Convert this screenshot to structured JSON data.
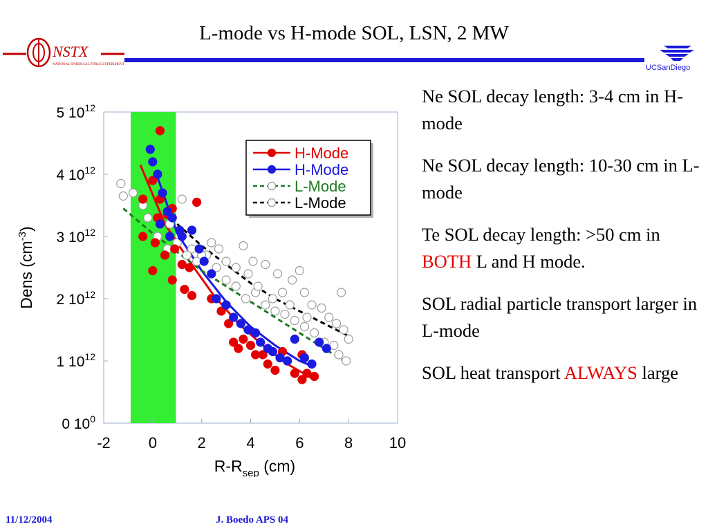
{
  "slide": {
    "title": "L-mode vs H-mode SOL, LSN, 2 MW",
    "logo_left_text": "NSTX",
    "logo_left_subtext": "NATIONAL SPHERICAL TORUS EXPERIMENT",
    "logo_right_text": "UCSanDiego",
    "footer_date": "11/12/2004",
    "footer_author": "J. Boedo APS 04"
  },
  "notes": [
    {
      "text": "Ne SOL decay length: 3-4 cm in H-mode"
    },
    {
      "text": "Ne SOL decay length: 10-30 cm in L-mode"
    },
    {
      "before": "Te SOL decay length: >50 cm in ",
      "highlight": "BOTH",
      "after": " L and H mode."
    },
    {
      "text": "SOL radial particle transport larger in L-mode"
    },
    {
      "before": "SOL heat transport ",
      "highlight": "ALWAYS",
      "after": " large"
    }
  ],
  "colors": {
    "title_rule": "#1a1ad8",
    "footer": "#1a1ad8",
    "highlight": "#e50000",
    "h_mode_red": "#e50000",
    "h_mode_blue": "#1a1ae0",
    "l_mode_green": "#1f7a1f",
    "l_mode_black": "#000000",
    "band": "#33ee33"
  },
  "chart_data": {
    "type": "scatter",
    "xlabel_main": "R-R",
    "xlabel_sub": "sep",
    "xlabel_unit": "(cm)",
    "ylabel_main": "Dens (cm",
    "ylabel_sup": "-3",
    "ylabel_end": ")",
    "xlim": [
      -2,
      10
    ],
    "ylim": [
      0,
      5
    ],
    "x_ticks": [
      -2,
      0,
      2,
      4,
      6,
      8,
      10
    ],
    "y_ticks": [
      {
        "value": 0,
        "base": "0 10",
        "exp": "0"
      },
      {
        "value": 1,
        "base": "1 10",
        "exp": "12"
      },
      {
        "value": 2,
        "base": "2 10",
        "exp": "12"
      },
      {
        "value": 3,
        "base": "3 10",
        "exp": "12"
      },
      {
        "value": 4,
        "base": "4 10",
        "exp": "12"
      },
      {
        "value": 5,
        "base": "5 10",
        "exp": "12"
      }
    ],
    "band": {
      "x_from": -0.9,
      "x_to": 0.95,
      "color": "#33ee33"
    },
    "legend_position": "top-right",
    "series": [
      {
        "name": "H-Mode",
        "color": "#e50000",
        "marker": "filled",
        "line": "solid",
        "points": [
          [
            0.3,
            4.7
          ],
          [
            -0.4,
            3.6
          ],
          [
            0.0,
            3.9
          ],
          [
            0.3,
            3.6
          ],
          [
            0.8,
            3.45
          ],
          [
            0.6,
            3.35
          ],
          [
            0.2,
            3.3
          ],
          [
            -0.4,
            3.0
          ],
          [
            0.1,
            2.9
          ],
          [
            0.5,
            2.7
          ],
          [
            0.9,
            2.8
          ],
          [
            1.2,
            2.55
          ],
          [
            1.5,
            2.5
          ],
          [
            0.0,
            2.45
          ],
          [
            0.8,
            2.3
          ],
          [
            1.3,
            2.15
          ],
          [
            1.8,
            3.55
          ],
          [
            1.6,
            2.05
          ],
          [
            2.4,
            2.0
          ],
          [
            2.8,
            1.8
          ],
          [
            3.1,
            1.6
          ],
          [
            3.3,
            1.3
          ],
          [
            3.5,
            1.2
          ],
          [
            3.7,
            1.35
          ],
          [
            4.0,
            1.25
          ],
          [
            4.2,
            1.1
          ],
          [
            4.5,
            1.1
          ],
          [
            4.7,
            0.95
          ],
          [
            5.0,
            0.85
          ],
          [
            5.3,
            1.15
          ],
          [
            5.5,
            1.0
          ],
          [
            5.8,
            0.8
          ],
          [
            6.1,
            1.1
          ],
          [
            6.3,
            0.8
          ],
          [
            6.6,
            0.75
          ],
          [
            6.1,
            0.7
          ]
        ],
        "fit": [
          [
            -0.5,
            4.15
          ],
          [
            0.5,
            3.2
          ],
          [
            1.5,
            2.6
          ],
          [
            2.5,
            2.05
          ],
          [
            3.5,
            1.6
          ],
          [
            4.5,
            1.25
          ],
          [
            5.5,
            0.95
          ],
          [
            6.6,
            0.7
          ]
        ]
      },
      {
        "name": "H-Mode",
        "color": "#1a1ae0",
        "marker": "filled",
        "line": "solid",
        "points": [
          [
            -0.1,
            4.4
          ],
          [
            0.0,
            4.2
          ],
          [
            0.2,
            4.0
          ],
          [
            0.4,
            3.7
          ],
          [
            0.6,
            3.4
          ],
          [
            0.8,
            3.3
          ],
          [
            0.3,
            3.2
          ],
          [
            0.7,
            3.0
          ],
          [
            1.1,
            3.1
          ],
          [
            1.2,
            3.0
          ],
          [
            1.6,
            3.1
          ],
          [
            1.9,
            2.8
          ],
          [
            2.1,
            2.6
          ],
          [
            2.4,
            2.4
          ],
          [
            2.6,
            2.0
          ],
          [
            3.0,
            1.9
          ],
          [
            3.3,
            1.7
          ],
          [
            3.6,
            1.6
          ],
          [
            3.9,
            1.5
          ],
          [
            4.2,
            1.45
          ],
          [
            4.4,
            1.3
          ],
          [
            4.7,
            1.2
          ],
          [
            4.9,
            1.15
          ],
          [
            5.2,
            1.05
          ],
          [
            5.5,
            1.0
          ],
          [
            5.8,
            1.35
          ],
          [
            6.2,
            1.05
          ],
          [
            6.5,
            0.95
          ],
          [
            6.8,
            1.3
          ],
          [
            7.1,
            1.2
          ]
        ],
        "fit": [
          [
            0.2,
            3.95
          ],
          [
            1.0,
            3.05
          ],
          [
            2.0,
            2.45
          ],
          [
            3.0,
            1.95
          ],
          [
            4.0,
            1.55
          ],
          [
            5.0,
            1.25
          ],
          [
            6.0,
            1.0
          ],
          [
            6.5,
            0.92
          ]
        ]
      },
      {
        "name": "L-Mode",
        "color": "#1f7a1f",
        "marker": "open",
        "line": "dashed",
        "points": [
          [
            -1.2,
            3.65
          ],
          [
            -0.8,
            3.7
          ],
          [
            -0.4,
            3.5
          ],
          [
            -0.2,
            3.3
          ],
          [
            0.2,
            3.0
          ],
          [
            0.6,
            2.8
          ],
          [
            1.0,
            2.9
          ],
          [
            1.4,
            2.7
          ],
          [
            1.8,
            2.6
          ],
          [
            2.2,
            2.7
          ],
          [
            2.6,
            2.5
          ],
          [
            3.0,
            2.3
          ],
          [
            3.4,
            2.2
          ],
          [
            3.8,
            2.0
          ],
          [
            4.2,
            2.1
          ],
          [
            4.6,
            1.9
          ],
          [
            5.0,
            1.8
          ],
          [
            5.4,
            1.75
          ],
          [
            5.8,
            1.65
          ],
          [
            6.2,
            1.55
          ],
          [
            6.6,
            1.45
          ],
          [
            7.0,
            1.3
          ],
          [
            7.4,
            1.25
          ],
          [
            7.6,
            1.1
          ],
          [
            7.9,
            1.0
          ]
        ],
        "fit": [
          [
            -1.2,
            3.45
          ],
          [
            0.0,
            3.05
          ],
          [
            1.0,
            2.75
          ],
          [
            2.0,
            2.45
          ],
          [
            3.0,
            2.2
          ],
          [
            4.0,
            1.95
          ],
          [
            5.0,
            1.7
          ],
          [
            6.0,
            1.45
          ],
          [
            7.0,
            1.2
          ],
          [
            8.0,
            0.95
          ]
        ]
      },
      {
        "name": "L-Mode",
        "color": "#000000",
        "marker": "open",
        "line": "dashed",
        "points": [
          [
            -1.3,
            3.85
          ],
          [
            0.2,
            3.0
          ],
          [
            0.7,
            3.2
          ],
          [
            1.2,
            3.6
          ],
          [
            1.6,
            2.8
          ],
          [
            2.0,
            2.7
          ],
          [
            2.4,
            2.9
          ],
          [
            2.7,
            2.8
          ],
          [
            3.0,
            2.6
          ],
          [
            3.4,
            2.5
          ],
          [
            3.7,
            2.85
          ],
          [
            3.9,
            2.4
          ],
          [
            4.1,
            2.6
          ],
          [
            4.3,
            2.2
          ],
          [
            4.6,
            2.55
          ],
          [
            4.9,
            2.0
          ],
          [
            5.1,
            2.4
          ],
          [
            5.3,
            2.1
          ],
          [
            5.7,
            2.3
          ],
          [
            6.0,
            2.45
          ],
          [
            6.2,
            2.1
          ],
          [
            6.5,
            1.9
          ],
          [
            6.9,
            1.85
          ],
          [
            7.2,
            1.7
          ],
          [
            7.5,
            1.6
          ],
          [
            7.8,
            1.5
          ],
          [
            8.0,
            1.35
          ],
          [
            7.7,
            2.1
          ],
          [
            6.3,
            1.7
          ],
          [
            5.6,
            1.9
          ]
        ],
        "fit": [
          [
            1.0,
            3.2
          ],
          [
            2.0,
            2.85
          ],
          [
            3.0,
            2.55
          ],
          [
            4.0,
            2.25
          ],
          [
            5.0,
            2.0
          ],
          [
            6.0,
            1.8
          ],
          [
            7.0,
            1.6
          ],
          [
            8.0,
            1.4
          ]
        ]
      }
    ]
  }
}
